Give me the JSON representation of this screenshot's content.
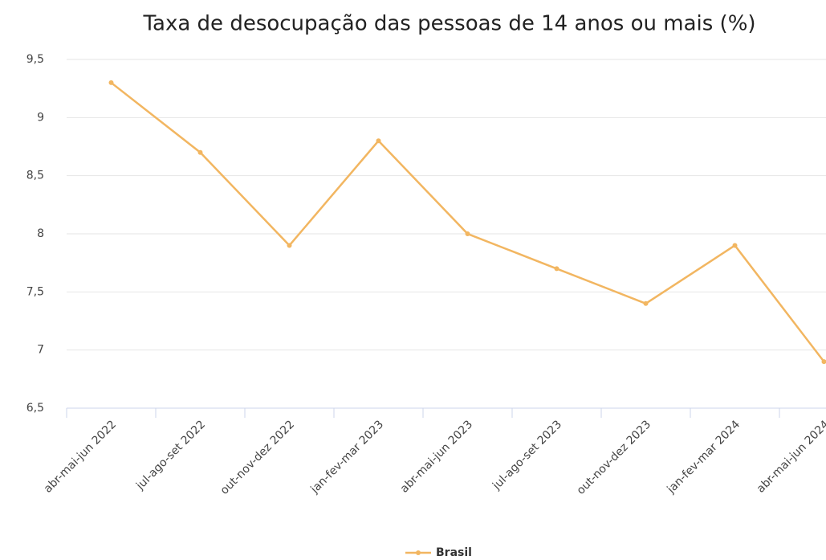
{
  "chart_data": {
    "type": "line",
    "title": "Taxa de desocupação das pessoas de 14 anos ou mais (%)",
    "categories": [
      "abr-mai-jun 2022",
      "jul-ago-set 2022",
      "out-nov-dez 2022",
      "jan-fev-mar 2023",
      "abr-mai-jun 2023",
      "jul-ago-set 2023",
      "out-nov-dez 2023",
      "jan-fev-mar 2024",
      "abr-mai-jun 2024"
    ],
    "series": [
      {
        "name": "Brasil",
        "color": "#f2b661",
        "values": [
          9.3,
          8.7,
          7.9,
          8.8,
          8.0,
          7.7,
          7.4,
          7.9,
          6.9
        ]
      }
    ],
    "ylim": [
      6.5,
      9.5
    ],
    "yticks": [
      {
        "value": 6.5,
        "label": "6,5"
      },
      7,
      {
        "value": 7.5,
        "label": "7,5"
      },
      8,
      {
        "value": 8.5,
        "label": "8,5"
      },
      9,
      {
        "value": 9.5,
        "label": "9,5"
      }
    ],
    "grid": true,
    "legend": "bottom"
  }
}
